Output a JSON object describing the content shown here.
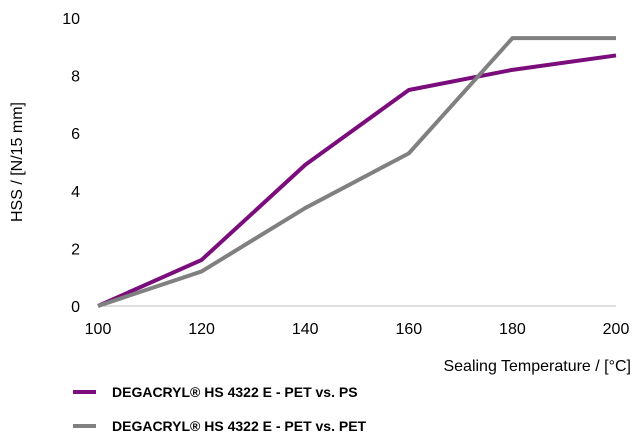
{
  "chart_data": {
    "type": "line",
    "title": "",
    "xlabel": "Sealing Temperature / [°C]",
    "ylabel": "HSS / [N/15 mm]",
    "x": [
      100,
      120,
      140,
      160,
      180,
      200
    ],
    "xlim": [
      100,
      200
    ],
    "ylim": [
      0,
      10
    ],
    "x_ticks": [
      "100",
      "120",
      "140",
      "160",
      "180",
      "200"
    ],
    "y_ticks": [
      "0",
      "2",
      "4",
      "6",
      "8",
      "10"
    ],
    "grid": false,
    "legend_position": "bottom",
    "series": [
      {
        "name": "DEGACRYL® HS 4322 E - PET vs. PS",
        "color": "#7b0c7b",
        "values": [
          0,
          1.6,
          4.9,
          7.5,
          8.2,
          8.7
        ]
      },
      {
        "name": "DEGACRYL® HS 4322 E - PET vs. PET",
        "color": "#808080",
        "values": [
          0,
          1.2,
          3.4,
          5.3,
          9.3,
          9.3
        ]
      }
    ]
  }
}
